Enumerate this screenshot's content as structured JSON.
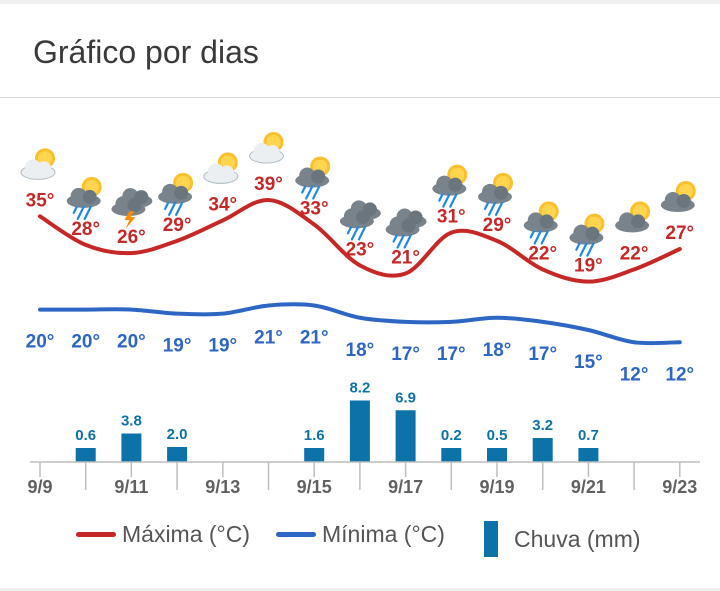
{
  "header": {
    "title": "Gráfico por dias"
  },
  "legend": {
    "max_label": "Máxima (°C)",
    "min_label": "Mínima (°C)",
    "rain_label": "Chuva (mm)"
  },
  "colors": {
    "max": "#c62828",
    "min": "#2e66c4",
    "rain": "#0d72a8"
  },
  "chart_data": {
    "type": "line",
    "days": [
      {
        "icon": "partly-sunny-icon",
        "max": "35°",
        "min": "20°",
        "rain": ""
      },
      {
        "icon": "sun-rain-icon",
        "max": "28°",
        "min": "20°",
        "rain": "0.6"
      },
      {
        "icon": "thunderstorm-icon",
        "max": "26°",
        "min": "20°",
        "rain": "3.8"
      },
      {
        "icon": "sun-rain-icon",
        "max": "29°",
        "min": "19°",
        "rain": "2.0"
      },
      {
        "icon": "partly-sunny-icon",
        "max": "34°",
        "min": "19°",
        "rain": ""
      },
      {
        "icon": "partly-sunny-icon",
        "max": "39°",
        "min": "21°",
        "rain": ""
      },
      {
        "icon": "sun-rain-icon",
        "max": "33°",
        "min": "21°",
        "rain": "1.6"
      },
      {
        "icon": "cloud-rain-icon",
        "max": "23°",
        "min": "18°",
        "rain": "8.2"
      },
      {
        "icon": "cloud-rain-icon",
        "max": "21°",
        "min": "17°",
        "rain": "6.9"
      },
      {
        "icon": "sun-rain-icon",
        "max": "31°",
        "min": "17°",
        "rain": "0.2"
      },
      {
        "icon": "sun-rain-icon",
        "max": "29°",
        "min": "18°",
        "rain": "0.5"
      },
      {
        "icon": "sun-rain-icon",
        "max": "22°",
        "min": "17°",
        "rain": "3.2"
      },
      {
        "icon": "sun-rain-icon",
        "max": "19°",
        "min": "15°",
        "rain": "0.7"
      },
      {
        "icon": "partly-cloudy-icon",
        "max": "22°",
        "min": "12°",
        "rain": ""
      },
      {
        "icon": "partly-cloudy-icon",
        "max": "27°",
        "min": "12°",
        "rain": ""
      }
    ],
    "x_labels": [
      "9/9",
      "9/11",
      "9/13",
      "9/15",
      "9/17",
      "9/19",
      "9/21",
      "9/23"
    ],
    "max_series": [
      35,
      28,
      26,
      29,
      34,
      39,
      33,
      23,
      21,
      31,
      29,
      22,
      19,
      22,
      27
    ],
    "min_series": [
      20,
      20,
      20,
      19,
      19,
      21,
      21,
      18,
      17,
      17,
      18,
      17,
      15,
      12,
      12
    ],
    "rain_values": [
      0,
      0.6,
      3.8,
      2.0,
      0,
      0,
      1.6,
      8.2,
      6.9,
      0.2,
      0.5,
      3.2,
      0.7,
      0,
      0
    ],
    "temp_range": [
      15,
      39
    ]
  }
}
